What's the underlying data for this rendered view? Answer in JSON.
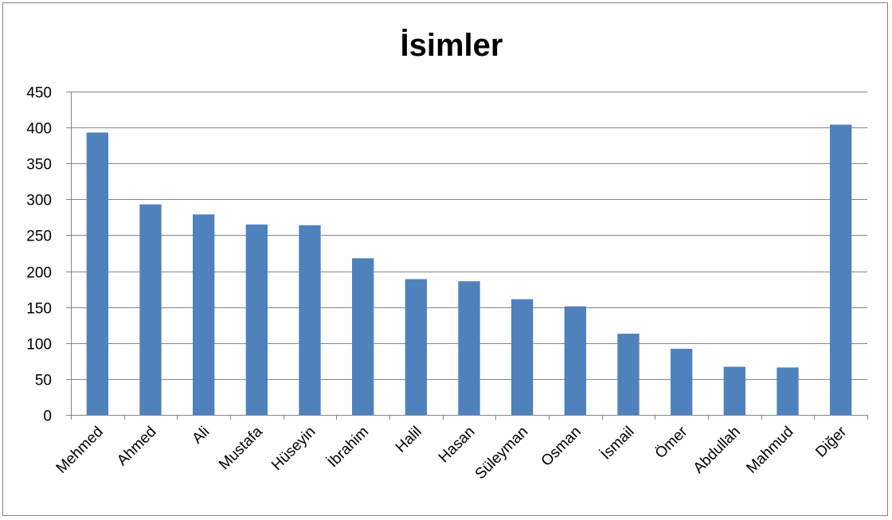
{
  "chart_data": {
    "type": "bar",
    "title": "İsimler",
    "xlabel": "",
    "ylabel": "",
    "categories": [
      "Mehmed",
      "Ahmed",
      "Ali",
      "Mustafa",
      "Hüseyin",
      "İbrahim",
      "Halil",
      "Hasan",
      "Süleyman",
      "Osman",
      "İsmail",
      "Ömer",
      "Abdullah",
      "Mahmud",
      "Diğer"
    ],
    "values": [
      393,
      293,
      279,
      265,
      264,
      218,
      189,
      186,
      161,
      151,
      113,
      92,
      67,
      66,
      404
    ],
    "ylim": [
      0,
      450
    ],
    "yticks": [
      0,
      50,
      100,
      150,
      200,
      250,
      300,
      350,
      400,
      450
    ],
    "grid": true,
    "legend": "none",
    "bar_color": "#4F81BD",
    "grid_color": "#868686"
  }
}
